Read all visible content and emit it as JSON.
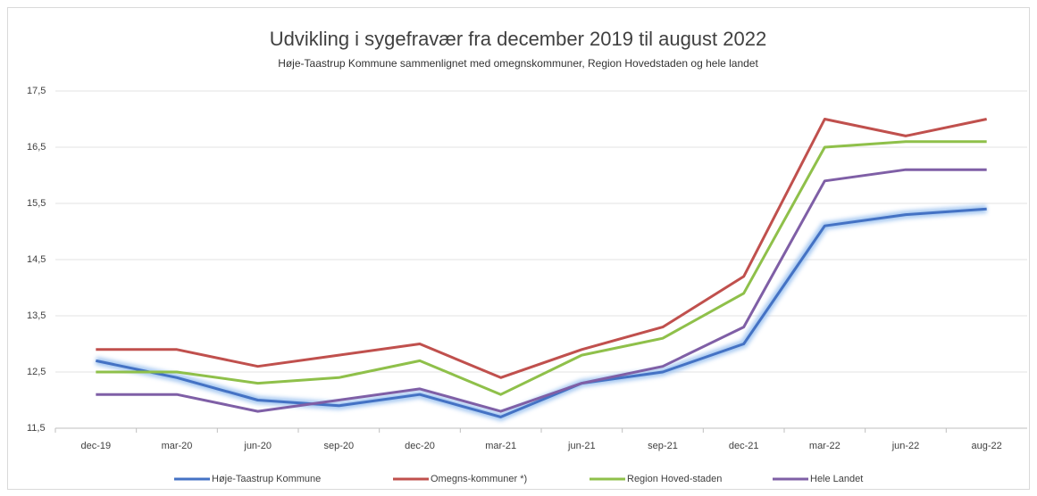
{
  "chart_data": {
    "type": "line",
    "title": "Udvikling i sygefravær fra december 2019 til august 2022",
    "subtitle": "Høje-Taastrup Kommune  sammenlignet med omegnskommuner,  Region Hovedstaden og hele landet",
    "categories": [
      "dec-19",
      "mar-20",
      "jun-20",
      "sep-20",
      "dec-20",
      "mar-21",
      "jun-21",
      "sep-21",
      "dec-21",
      "mar-22",
      "jun-22",
      "aug-22"
    ],
    "series": [
      {
        "name": "Høje-Taastrup Kommune",
        "color": "#4472c4",
        "values": [
          12.7,
          12.4,
          12.0,
          11.9,
          12.1,
          11.7,
          12.3,
          12.5,
          13.0,
          15.1,
          15.3,
          15.4
        ]
      },
      {
        "name": "Omegns-kommuner *)",
        "color": "#c0504d",
        "values": [
          12.9,
          12.9,
          12.6,
          12.8,
          13.0,
          12.4,
          12.9,
          13.3,
          14.2,
          17.0,
          16.7,
          17.0
        ]
      },
      {
        "name": "Region Hoved-staden",
        "color": "#8fc04a",
        "values": [
          12.5,
          12.5,
          12.3,
          12.4,
          12.7,
          12.1,
          12.8,
          13.1,
          13.9,
          16.5,
          16.6,
          16.6
        ]
      },
      {
        "name": "Hele Landet",
        "color": "#7f5fa6",
        "values": [
          12.1,
          12.1,
          11.8,
          12.0,
          12.2,
          11.8,
          12.3,
          12.6,
          13.3,
          15.9,
          16.1,
          16.1
        ]
      }
    ],
    "ylim": [
      11.5,
      17.5
    ],
    "yticks": [
      {
        "value": 11.5,
        "label": "11,5"
      },
      {
        "value": 12.5,
        "label": "12,5"
      },
      {
        "value": 13.5,
        "label": "13,5"
      },
      {
        "value": 14.5,
        "label": "14,5"
      },
      {
        "value": 15.5,
        "label": "15,5"
      },
      {
        "value": 16.5,
        "label": "16,5"
      },
      {
        "value": 17.5,
        "label": "17,5"
      }
    ],
    "grid": true,
    "legend": "bottom"
  }
}
